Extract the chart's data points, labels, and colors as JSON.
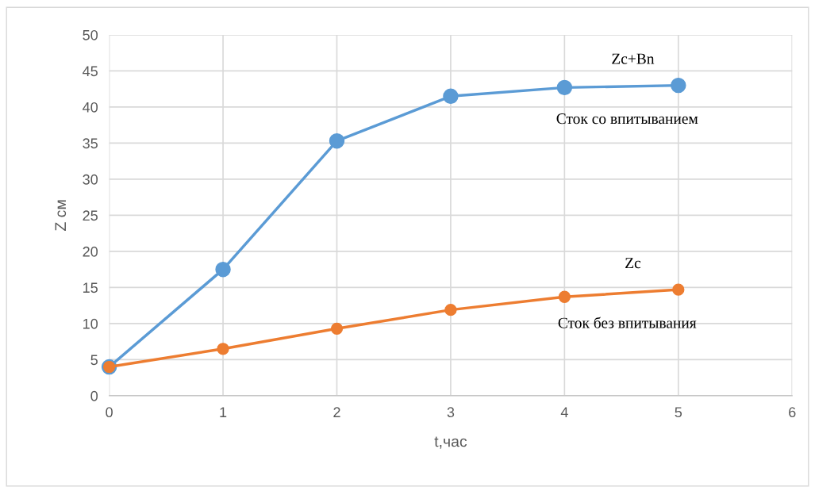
{
  "chart_data": {
    "type": "line",
    "xlabel": "t,час",
    "ylabel": "Z см",
    "x": [
      0,
      1,
      2,
      3,
      4,
      5
    ],
    "series": [
      {
        "name": "Zc+Bn",
        "color": "#5b9bd5",
        "values": [
          4,
          17.5,
          35.3,
          41.5,
          42.7,
          43.0
        ]
      },
      {
        "name": "Zc",
        "color": "#ed7d31",
        "values": [
          4,
          6.5,
          9.3,
          11.9,
          13.7,
          14.7
        ]
      }
    ],
    "annotations": [
      "Сток со впитыванием",
      "Сток без впитывания"
    ],
    "xlim": [
      0,
      6
    ],
    "xticks": [
      0,
      1,
      2,
      3,
      4,
      5,
      6
    ],
    "ylim": [
      0,
      50
    ],
    "yticks": [
      0,
      5,
      10,
      15,
      20,
      25,
      30,
      35,
      40,
      45,
      50
    ],
    "grid": true,
    "marker": "circle",
    "line_style": "solid"
  }
}
